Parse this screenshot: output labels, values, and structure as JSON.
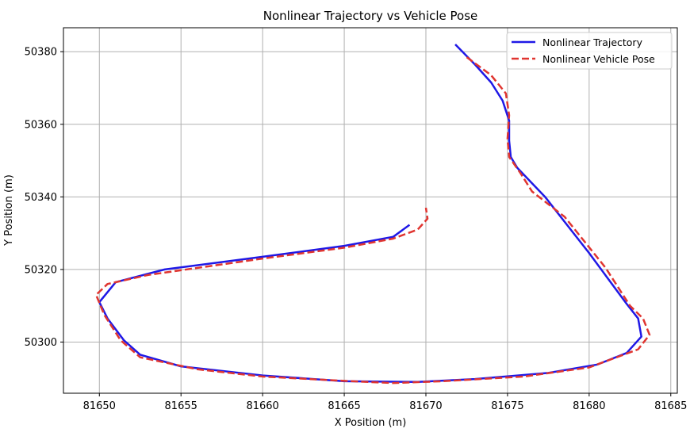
{
  "chart_data": {
    "type": "line",
    "title": "Nonlinear Trajectory vs Vehicle Pose",
    "xlabel": "X Position (m)",
    "ylabel": "Y Position (m)",
    "xlim": [
      81647.8,
      81685.4
    ],
    "ylim": [
      50285.9,
      50386.6
    ],
    "xticks": [
      81650,
      81655,
      81660,
      81665,
      81670,
      81675,
      81680,
      81685
    ],
    "yticks": [
      50300,
      50320,
      50340,
      50360,
      50380
    ],
    "grid": true,
    "legend_position": "top-right",
    "colors": {
      "trajectory": "#1f18e6",
      "vehicle_pose": "#e03530",
      "grid": "#b0b0b0",
      "frame": "#000000",
      "legend_border": "#cccccc"
    },
    "series": [
      {
        "name": "Nonlinear Trajectory",
        "style": "solid",
        "color": "#1f18e6",
        "points": [
          [
            81671.8,
            50382.0
          ],
          [
            81673.0,
            50376.5
          ],
          [
            81674.0,
            50371.5
          ],
          [
            81674.7,
            50366.5
          ],
          [
            81675.1,
            50361.0
          ],
          [
            81675.1,
            50355.5
          ],
          [
            81675.2,
            50351.0
          ],
          [
            81675.6,
            50348.0
          ],
          [
            81677.3,
            50340.0
          ],
          [
            81680.0,
            50324.5
          ],
          [
            81682.3,
            50310.5
          ],
          [
            81683.0,
            50306.5
          ],
          [
            81683.2,
            50301.5
          ],
          [
            81682.3,
            50297.0
          ],
          [
            81680.5,
            50293.8
          ],
          [
            81677.5,
            50291.5
          ],
          [
            81673.0,
            50289.8
          ],
          [
            81669.5,
            50289.0
          ],
          [
            81665.0,
            50289.2
          ],
          [
            81660.0,
            50290.8
          ],
          [
            81655.0,
            50293.3
          ],
          [
            81652.5,
            50296.5
          ],
          [
            81651.5,
            50300.5
          ],
          [
            81650.5,
            50306.5
          ],
          [
            81650.0,
            50311.0
          ],
          [
            81651.0,
            50316.5
          ],
          [
            81654.0,
            50320.0
          ],
          [
            81660.0,
            50323.5
          ],
          [
            81665.0,
            50326.5
          ],
          [
            81668.0,
            50329.0
          ],
          [
            81669.0,
            50332.3
          ]
        ]
      },
      {
        "name": "Nonlinear Vehicle Pose",
        "style": "dashed",
        "color": "#e03530",
        "points": [
          [
            81672.5,
            50378.5
          ],
          [
            81674.0,
            50373.5
          ],
          [
            81674.9,
            50368.5
          ],
          [
            81675.1,
            50362.5
          ],
          [
            81675.0,
            50356.0
          ],
          [
            81675.1,
            50351.0
          ],
          [
            81675.8,
            50346.5
          ],
          [
            81676.5,
            50341.5
          ],
          [
            81678.5,
            50334.5
          ],
          [
            81681.0,
            50320.5
          ],
          [
            81682.5,
            50310.0
          ],
          [
            81683.3,
            50306.5
          ],
          [
            81683.7,
            50302.0
          ],
          [
            81683.0,
            50298.0
          ],
          [
            81680.0,
            50293.0
          ],
          [
            81676.0,
            50290.5
          ],
          [
            81671.0,
            50289.2
          ],
          [
            81668.0,
            50288.7
          ],
          [
            81665.0,
            50289.3
          ],
          [
            81660.0,
            50290.5
          ],
          [
            81656.0,
            50292.5
          ],
          [
            81652.5,
            50295.8
          ],
          [
            81651.3,
            50300.5
          ],
          [
            81650.3,
            50307.5
          ],
          [
            81649.8,
            50313.0
          ],
          [
            81650.5,
            50316.0
          ],
          [
            81653.0,
            50318.5
          ],
          [
            81660.0,
            50323.0
          ],
          [
            81665.0,
            50326.0
          ],
          [
            81668.0,
            50328.5
          ],
          [
            81669.5,
            50331.0
          ],
          [
            81670.1,
            50334.0
          ],
          [
            81670.0,
            50337.0
          ]
        ]
      }
    ]
  }
}
